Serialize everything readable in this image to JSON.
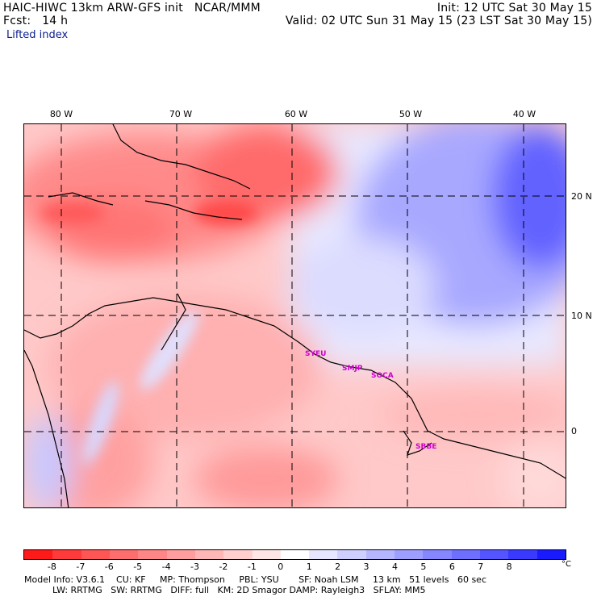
{
  "header": {
    "title_left": "HAIC-HIWC 13km ARW-GFS init   NCAR/MMM",
    "fcst": "Fcst:   14 h",
    "init": "Init: 12 UTC Sat 30 May 15",
    "valid": "Valid: 02 UTC Sun 31 May 15 (23 LST Sat 30 May 15)",
    "field": "Lifted index"
  },
  "map": {
    "lon_labels": [
      "80 W",
      "70 W",
      "60 W",
      "50 W",
      "40 W"
    ],
    "lat_labels": [
      "20 N",
      "10 N",
      "0"
    ],
    "sites": [
      "SYEU",
      "SMJP",
      "SOCA",
      "SBBE"
    ]
  },
  "colorbar": {
    "colors": [
      "#ff1a1a",
      "#ff3a3a",
      "#ff5555",
      "#ff6e6e",
      "#ff8686",
      "#ff9e9e",
      "#ffb6b6",
      "#ffcfcf",
      "#ffe6e6",
      "#ffffff",
      "#e6e6ff",
      "#cfcfff",
      "#b6b6ff",
      "#9e9eff",
      "#8686ff",
      "#6e6eff",
      "#5555ff",
      "#3a3aff",
      "#1a1aff"
    ],
    "ticks": [
      "-8",
      "-7",
      "-6",
      "-5",
      "-4",
      "-3",
      "-2",
      "-1",
      "0",
      "1",
      "2",
      "3",
      "4",
      "5",
      "6",
      "7",
      "8"
    ],
    "unit": "°C"
  },
  "footer": {
    "line1": "Model Info: V3.6.1    CU: KF     MP: Thompson     PBL: YSU       SF: Noah LSM     13 km   51 levels   60 sec",
    "line2": "          LW: RRTMG   SW: RRTMG   DIFF: full   KM: 2D Smagor DAMP: Rayleigh3   SFLAY: MM5"
  }
}
